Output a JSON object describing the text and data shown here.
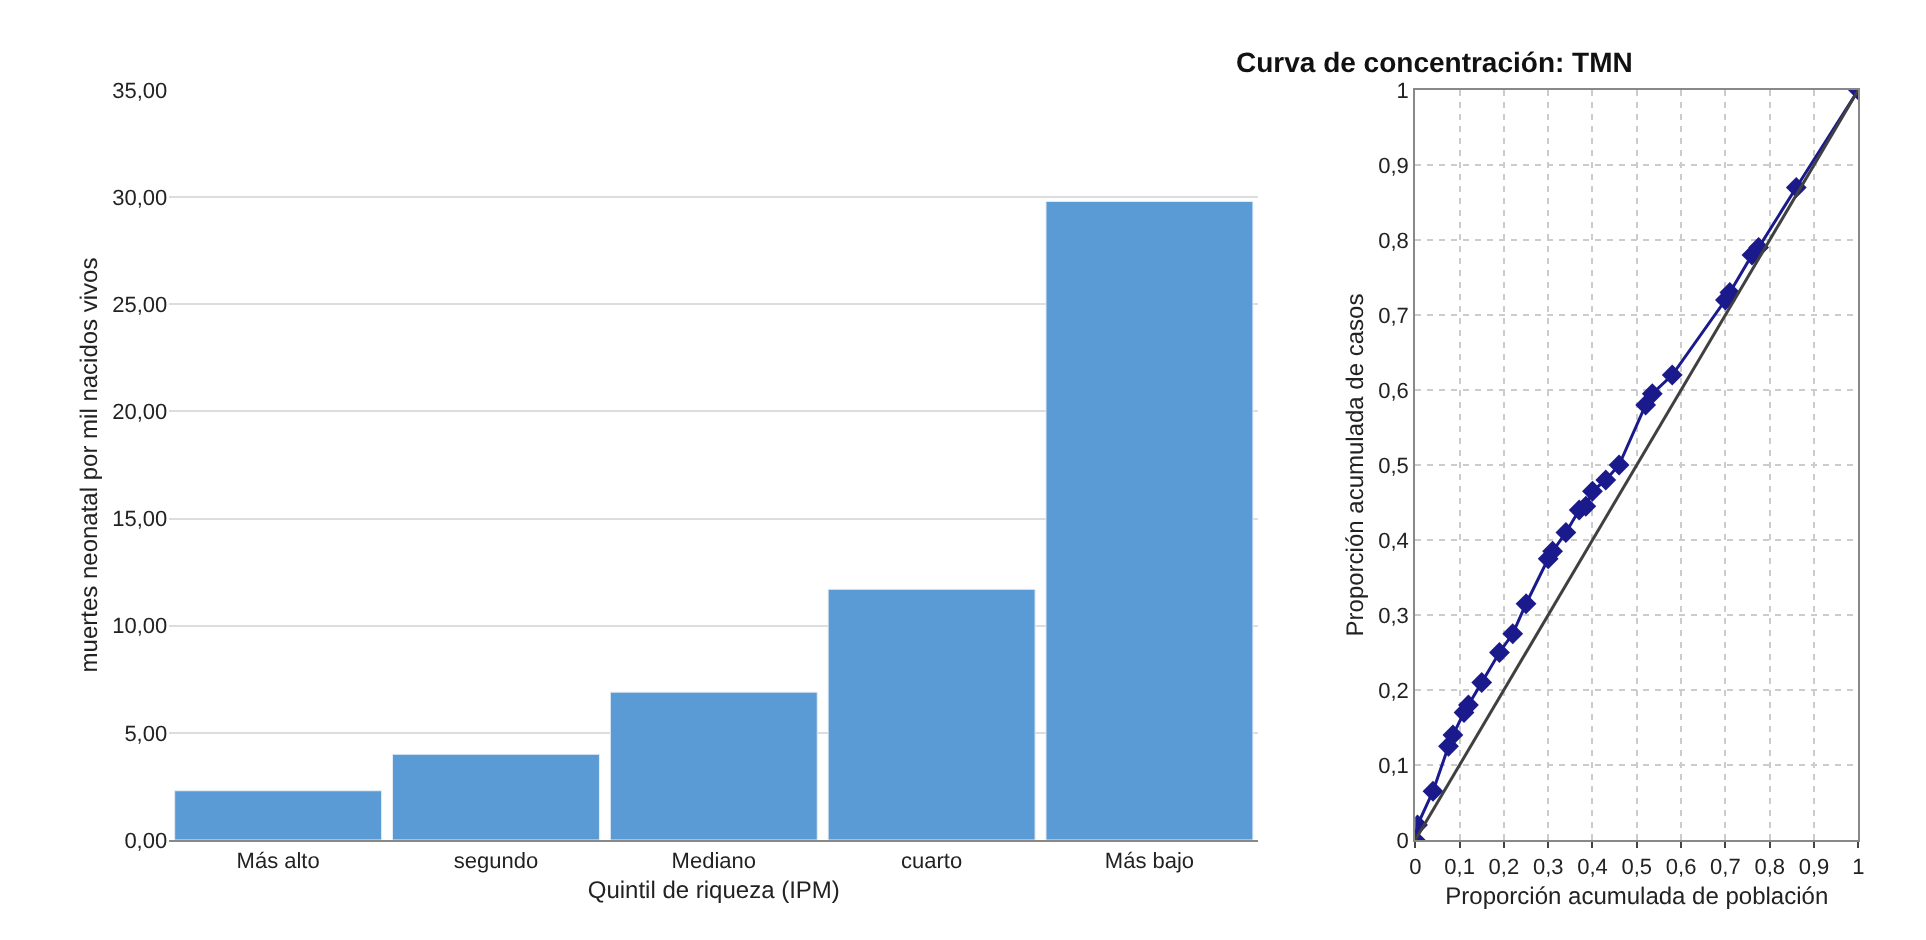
{
  "chart_data": [
    {
      "type": "bar",
      "xlabel": "Quintil de riqueza (IPM)",
      "ylabel": "muertes neonatal por mil nacidos vivos",
      "categories": [
        "Más alto",
        "segundo",
        "Mediano",
        "cuarto",
        "Más bajo"
      ],
      "values": [
        2.3,
        4.0,
        6.9,
        11.7,
        29.8
      ],
      "color": "#5b9bd5",
      "ylim": [
        0,
        35
      ],
      "yticks": [
        {
          "value": 0,
          "label": "0,00"
        },
        {
          "value": 5,
          "label": "5,00"
        },
        {
          "value": 10,
          "label": "10,00"
        },
        {
          "value": 15,
          "label": "15,00"
        },
        {
          "value": 20,
          "label": "20,00"
        },
        {
          "value": 25,
          "label": "25,00"
        },
        {
          "value": 30,
          "label": "30,00"
        },
        {
          "value": 35,
          "label": "35,00"
        }
      ],
      "grid": "y"
    },
    {
      "type": "line",
      "title": "Curva de concentración: TMN",
      "xlabel": "Proporción acumulada de población",
      "ylabel": "Proporción acumulada de casos",
      "series": [
        {
          "color": "#1a1a8c",
          "marker": "diamond",
          "x": [
            0,
            0.005,
            0.04,
            0.075,
            0.085,
            0.11,
            0.12,
            0.15,
            0.19,
            0.22,
            0.25,
            0.3,
            0.31,
            0.34,
            0.37,
            0.385,
            0.4,
            0.43,
            0.46,
            0.52,
            0.535,
            0.58,
            0.7,
            0.71,
            0.76,
            0.775,
            0.86,
            1
          ],
          "values": [
            0,
            0.02,
            0.065,
            0.125,
            0.14,
            0.17,
            0.18,
            0.21,
            0.25,
            0.275,
            0.315,
            0.375,
            0.385,
            0.41,
            0.44,
            0.445,
            0.465,
            0.48,
            0.5,
            0.58,
            0.595,
            0.62,
            0.72,
            0.73,
            0.78,
            0.79,
            0.87,
            1
          ]
        },
        {
          "color": "#404040",
          "marker": "none",
          "x": [
            0,
            1
          ],
          "values": [
            0,
            1
          ]
        }
      ],
      "xlim": [
        0,
        1
      ],
      "ylim": [
        0,
        1
      ],
      "xticks": [
        0,
        {
          "value": 0.1,
          "label": "0,1"
        },
        {
          "value": 0.2,
          "label": "0,2"
        },
        {
          "value": 0.3,
          "label": "0,3"
        },
        {
          "value": 0.4,
          "label": "0,4"
        },
        {
          "value": 0.5,
          "label": "0,5"
        },
        {
          "value": 0.6,
          "label": "0,6"
        },
        {
          "value": 0.7,
          "label": "0,7"
        },
        {
          "value": 0.8,
          "label": "0,8"
        },
        {
          "value": 0.9,
          "label": "0,9"
        },
        1
      ],
      "yticks": [
        0,
        {
          "value": 0.1,
          "label": "0,1"
        },
        {
          "value": 0.2,
          "label": "0,2"
        },
        {
          "value": 0.3,
          "label": "0,3"
        },
        {
          "value": 0.4,
          "label": "0,4"
        },
        {
          "value": 0.5,
          "label": "0,5"
        },
        {
          "value": 0.6,
          "label": "0,6"
        },
        {
          "value": 0.7,
          "label": "0,7"
        },
        {
          "value": 0.8,
          "label": "0,8"
        },
        {
          "value": 0.9,
          "label": "0,9"
        },
        1
      ],
      "grid": true
    }
  ]
}
